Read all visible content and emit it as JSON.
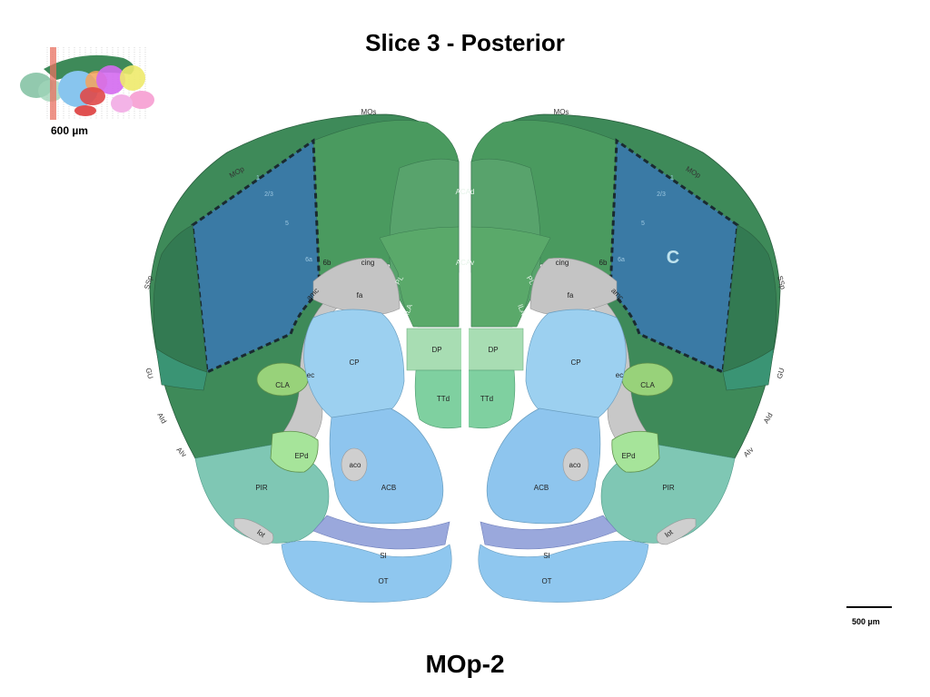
{
  "title": "Slice 3 - Posterior",
  "footer": "MOp-2",
  "thumbnail": {
    "scale_label": "600 µm"
  },
  "scale": {
    "label": "500 µm"
  },
  "marker": "C",
  "regions": {
    "MOs": "MOs",
    "MOp": "MOp",
    "SSp": "SSp",
    "GU": "GU",
    "AId": "AId",
    "AIv": "AIv",
    "ACAd": "ACAd",
    "ACAv": "ACAv",
    "PL": "PL",
    "ILA": "ILA",
    "cing": "cing",
    "fa": "fa",
    "6b": "6b",
    "amc": "amc",
    "ec": "ec",
    "CLA": "CLA",
    "EPd": "EPd",
    "PIR": "PIR",
    "lot": "lot",
    "CP": "CP",
    "DP": "DP",
    "TTd": "TTd",
    "aco": "aco",
    "ACB": "ACB",
    "SI": "SI",
    "OT": "OT"
  },
  "layers": {
    "l1": "1",
    "l23": "2/3",
    "l5": "5",
    "l6": "6a"
  },
  "colors": {
    "cortex_dark": "#3e8a59",
    "cortex_mid": "#4a9a5f",
    "mop_highlight": "#3a7aa5",
    "frontal_light": "#6ab37a",
    "striatum": "#9cd0f0",
    "acb": "#8ec5ee",
    "white_matter": "#c8c8c8",
    "olfactory": "#7fc7b4",
    "dp": "#a8ddb3",
    "si": "#9aa8dc",
    "ot": "#8fc7ef"
  }
}
